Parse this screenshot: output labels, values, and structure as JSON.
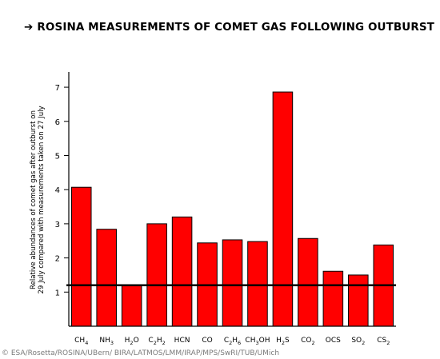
{
  "title": {
    "arrow": "➔",
    "text": "ROSINA MEASUREMENTS OF COMET GAS FOLLOWING OUTBURST"
  },
  "credit": "© ESA/Rosetta/ROSINA/UBern/ BIRA/LATMOS/LMM/IRAP/MPS/SwRI/TUB/UMich",
  "chart_data": {
    "type": "bar",
    "title": "ROSINA MEASUREMENTS OF COMET GAS FOLLOWING OUTBURST",
    "ylabel_lines": [
      "Relative abundances of comet gas after outburst on",
      "29 July compared with measurements taken on 27 July"
    ],
    "xlabel": "",
    "categories": [
      {
        "base": "CH",
        "sub": "4"
      },
      {
        "base": "NH",
        "sub": "3"
      },
      {
        "base": "H",
        "sub": "2",
        "rest": "O"
      },
      {
        "base": "C",
        "sub": "2",
        "rest": "H",
        "sub2": "2"
      },
      {
        "base": "HCN"
      },
      {
        "base": "CO"
      },
      {
        "base": "C",
        "sub": "2",
        "rest": "H",
        "sub2": "6"
      },
      {
        "base": "CH",
        "sub": "3",
        "rest": "OH"
      },
      {
        "base": "H",
        "sub": "2",
        "rest": "S"
      },
      {
        "base": "CO",
        "sub": "2"
      },
      {
        "base": "OCS"
      },
      {
        "base": "SO",
        "sub": "2"
      },
      {
        "base": "CS",
        "sub": "2"
      }
    ],
    "values": [
      4.07,
      2.84,
      1.2,
      3.0,
      3.2,
      2.44,
      2.53,
      2.48,
      6.86,
      2.57,
      1.61,
      1.5,
      2.38
    ],
    "ylim": [
      0,
      7.4
    ],
    "yticks": [
      1,
      2,
      3,
      4,
      5,
      6,
      7
    ],
    "reference_line": 1.2,
    "bar_color": "#ff0000",
    "bar_edge_color": "#000000",
    "grid": false,
    "legend": "none"
  }
}
